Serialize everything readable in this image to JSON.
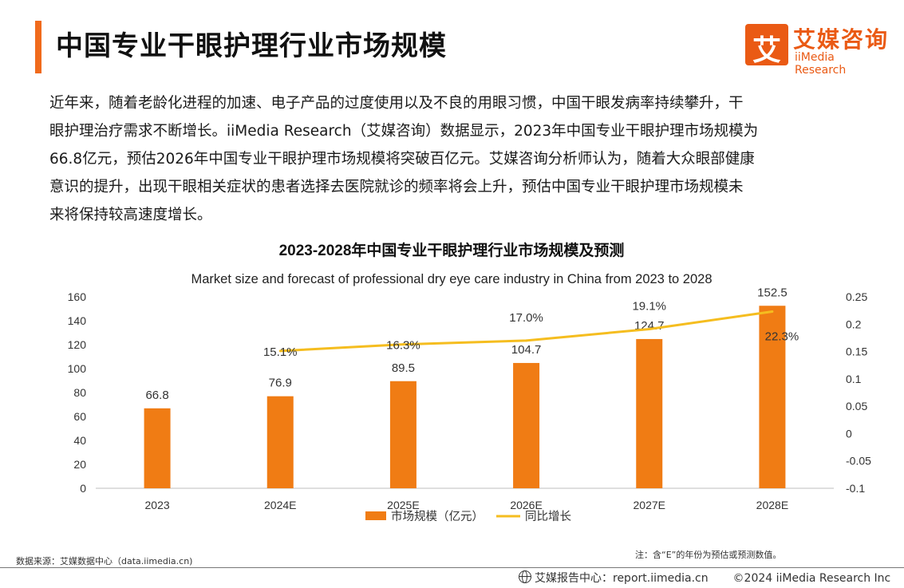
{
  "page": {
    "title": "中国专业干眼护理行业市场规模",
    "intro_lines": [
      "近年来，随着老龄化进程的加速、电子产品的过度使用以及不良的用眼习惯，中国干眼发病率持续攀升，干",
      "眼护理治疗需求不断增长。iiMedia Research（艾媒咨询）数据显示，2023年中国专业干眼护理市场规模为",
      "66.8亿元，预估2026年中国专业干眼护理市场规模将突破百亿元。艾媒咨询分析师认为，随着大众眼部健康",
      "意识的提升，出现干眼相关症状的患者选择去医院就诊的频率将会上升，预估中国专业干眼护理市场规模未",
      "来将保持较高速度增长。"
    ]
  },
  "logo": {
    "mark": "艾",
    "cn": "艾媒咨询",
    "en": "iiMedia Research",
    "color": "#ea5a14"
  },
  "chart_data": {
    "type": "bar",
    "title": "2023-2028年中国专业干眼护理行业市场规模及预测",
    "subtitle": "Market size and forecast of professional dry eye care industry in China from 2023 to 2028",
    "categories": [
      "2023",
      "2024E",
      "2025E",
      "2026E",
      "2027E",
      "2028E"
    ],
    "series": [
      {
        "name": "市场规模（亿元）",
        "type": "bar",
        "axis": "left",
        "color": "#f07c14",
        "values": [
          66.8,
          76.9,
          89.5,
          104.7,
          124.7,
          152.5
        ],
        "labels": [
          "66.8",
          "76.9",
          "89.5",
          "104.7",
          "124.7",
          "152.5"
        ]
      },
      {
        "name": "同比增长",
        "type": "line",
        "axis": "right",
        "color": "#f5bd1f",
        "values": [
          null,
          0.151,
          0.163,
          0.17,
          0.191,
          0.223
        ],
        "labels": [
          "",
          "15.1%",
          "16.3%",
          "17.0%",
          "19.1%",
          "22.3%"
        ]
      }
    ],
    "y_left": {
      "ylim": [
        0,
        160
      ],
      "ticks": [
        "0",
        "20",
        "40",
        "60",
        "80",
        "100",
        "120",
        "140",
        "160"
      ]
    },
    "y_right": {
      "ylim": [
        -0.1,
        0.25
      ],
      "ticks": [
        "-0.1",
        "-0.05",
        "0",
        "0.05",
        "0.1",
        "0.15",
        "0.2",
        "0.25"
      ]
    },
    "grid": false,
    "legend": "bottom"
  },
  "footer": {
    "source": "数据来源：艾媒数据中心（data.iimedia.cn)",
    "note": "注：含“E”的年份为预估或预测数值。",
    "report_center": "艾媒报告中心：report.iimedia.cn",
    "copyright": "©2024  iiMedia Research  Inc"
  }
}
